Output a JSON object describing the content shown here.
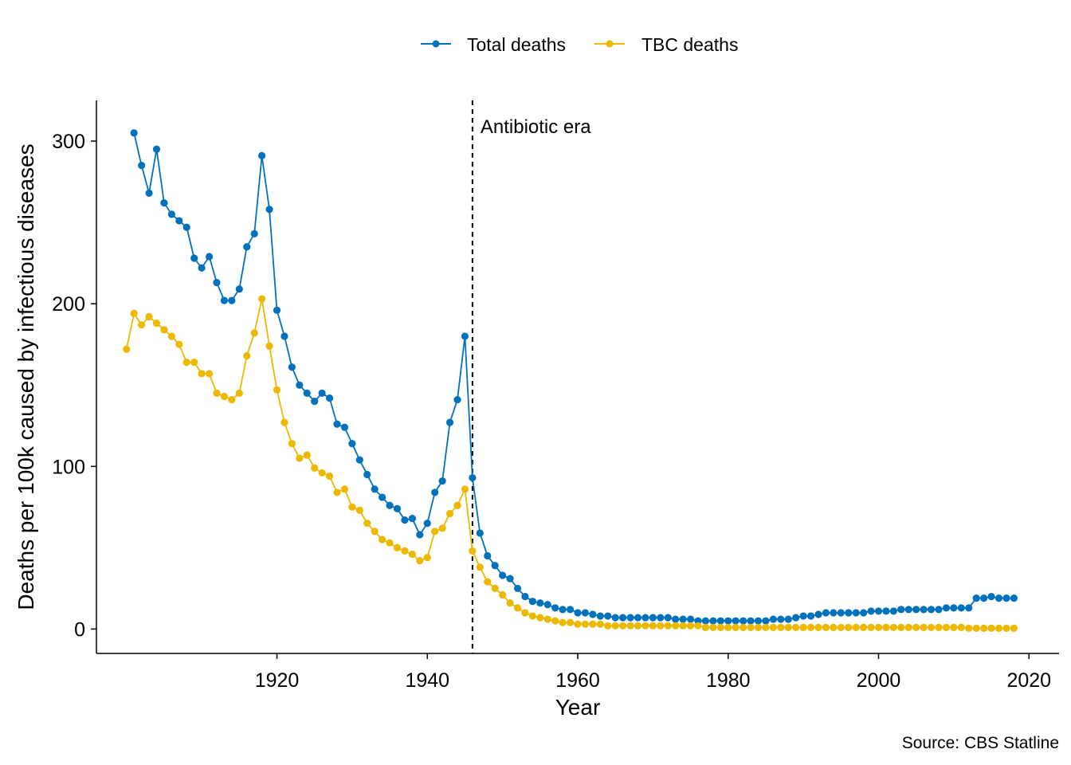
{
  "chart_data": {
    "type": "line",
    "xlabel": "Year",
    "ylabel": "Deaths per 100k caused by infectious diseases",
    "caption": "Source: CBS Statline",
    "xlim": [
      1896,
      2024
    ],
    "ylim": [
      -15,
      325
    ],
    "x_ticks": [
      1920,
      1940,
      1960,
      1980,
      2000,
      2020
    ],
    "y_ticks": [
      0,
      100,
      200,
      300
    ],
    "grid": false,
    "legend_position": "top",
    "markers": true,
    "annotation": {
      "x": 1946,
      "label": "Antibiotic era",
      "line_style": "dashed"
    },
    "series": [
      {
        "name": "Total deaths",
        "color": "#0072BD",
        "points": [
          [
            1901,
            305
          ],
          [
            1902,
            285
          ],
          [
            1903,
            268
          ],
          [
            1904,
            295
          ],
          [
            1905,
            262
          ],
          [
            1906,
            255
          ],
          [
            1907,
            251
          ],
          [
            1908,
            247
          ],
          [
            1909,
            228
          ],
          [
            1910,
            222
          ],
          [
            1911,
            229
          ],
          [
            1912,
            213
          ],
          [
            1913,
            202
          ],
          [
            1914,
            202
          ],
          [
            1915,
            209
          ],
          [
            1916,
            235
          ],
          [
            1917,
            243
          ],
          [
            1918,
            291
          ],
          [
            1919,
            258
          ],
          [
            1920,
            196
          ],
          [
            1921,
            180
          ],
          [
            1922,
            161
          ],
          [
            1923,
            150
          ],
          [
            1924,
            145
          ],
          [
            1925,
            140
          ],
          [
            1926,
            145
          ],
          [
            1927,
            142
          ],
          [
            1928,
            126
          ],
          [
            1929,
            124
          ],
          [
            1930,
            114
          ],
          [
            1931,
            104
          ],
          [
            1932,
            95
          ],
          [
            1933,
            86
          ],
          [
            1934,
            81
          ],
          [
            1935,
            76
          ],
          [
            1936,
            74
          ],
          [
            1937,
            67
          ],
          [
            1938,
            68
          ],
          [
            1939,
            58
          ],
          [
            1940,
            65
          ],
          [
            1941,
            84
          ],
          [
            1942,
            91
          ],
          [
            1943,
            127
          ],
          [
            1944,
            141
          ],
          [
            1945,
            180
          ],
          [
            1946,
            93
          ],
          [
            1947,
            59
          ],
          [
            1948,
            45
          ],
          [
            1949,
            39
          ],
          [
            1950,
            33
          ],
          [
            1951,
            31
          ],
          [
            1952,
            25
          ],
          [
            1953,
            20
          ],
          [
            1954,
            17
          ],
          [
            1955,
            16
          ],
          [
            1956,
            15
          ],
          [
            1957,
            13
          ],
          [
            1958,
            12
          ],
          [
            1959,
            12
          ],
          [
            1960,
            10
          ],
          [
            1961,
            10
          ],
          [
            1962,
            9
          ],
          [
            1963,
            8
          ],
          [
            1964,
            8
          ],
          [
            1965,
            7
          ],
          [
            1966,
            7
          ],
          [
            1967,
            7
          ],
          [
            1968,
            7
          ],
          [
            1969,
            7
          ],
          [
            1970,
            7
          ],
          [
            1971,
            7
          ],
          [
            1972,
            7
          ],
          [
            1973,
            6
          ],
          [
            1974,
            6
          ],
          [
            1975,
            6
          ],
          [
            1976,
            5
          ],
          [
            1977,
            5
          ],
          [
            1978,
            5
          ],
          [
            1979,
            5
          ],
          [
            1980,
            5
          ],
          [
            1981,
            5
          ],
          [
            1982,
            5
          ],
          [
            1983,
            5
          ],
          [
            1984,
            5
          ],
          [
            1985,
            5
          ],
          [
            1986,
            6
          ],
          [
            1987,
            6
          ],
          [
            1988,
            6
          ],
          [
            1989,
            7
          ],
          [
            1990,
            8
          ],
          [
            1991,
            8
          ],
          [
            1992,
            9
          ],
          [
            1993,
            10
          ],
          [
            1994,
            10
          ],
          [
            1995,
            10
          ],
          [
            1996,
            10
          ],
          [
            1997,
            10
          ],
          [
            1998,
            10
          ],
          [
            1999,
            11
          ],
          [
            2000,
            11
          ],
          [
            2001,
            11
          ],
          [
            2002,
            11
          ],
          [
            2003,
            12
          ],
          [
            2004,
            12
          ],
          [
            2005,
            12
          ],
          [
            2006,
            12
          ],
          [
            2007,
            12
          ],
          [
            2008,
            12
          ],
          [
            2009,
            13
          ],
          [
            2010,
            13
          ],
          [
            2011,
            13
          ],
          [
            2012,
            13
          ],
          [
            2013,
            19
          ],
          [
            2014,
            19
          ],
          [
            2015,
            20
          ],
          [
            2016,
            19
          ],
          [
            2017,
            19
          ],
          [
            2018,
            19
          ]
        ]
      },
      {
        "name": "TBC deaths",
        "color": "#EDB800",
        "points": [
          [
            1900,
            172
          ],
          [
            1901,
            194
          ],
          [
            1902,
            187
          ],
          [
            1903,
            192
          ],
          [
            1904,
            188
          ],
          [
            1905,
            184
          ],
          [
            1906,
            180
          ],
          [
            1907,
            175
          ],
          [
            1908,
            164
          ],
          [
            1909,
            164
          ],
          [
            1910,
            157
          ],
          [
            1911,
            157
          ],
          [
            1912,
            145
          ],
          [
            1913,
            143
          ],
          [
            1914,
            141
          ],
          [
            1915,
            145
          ],
          [
            1916,
            168
          ],
          [
            1917,
            182
          ],
          [
            1918,
            203
          ],
          [
            1919,
            174
          ],
          [
            1920,
            147
          ],
          [
            1921,
            127
          ],
          [
            1922,
            114
          ],
          [
            1923,
            105
          ],
          [
            1924,
            107
          ],
          [
            1925,
            99
          ],
          [
            1926,
            96
          ],
          [
            1927,
            94
          ],
          [
            1928,
            84
          ],
          [
            1929,
            86
          ],
          [
            1930,
            75
          ],
          [
            1931,
            73
          ],
          [
            1932,
            65
          ],
          [
            1933,
            60
          ],
          [
            1934,
            55
          ],
          [
            1935,
            53
          ],
          [
            1936,
            50
          ],
          [
            1937,
            48
          ],
          [
            1938,
            46
          ],
          [
            1939,
            42
          ],
          [
            1940,
            44
          ],
          [
            1941,
            60
          ],
          [
            1942,
            62
          ],
          [
            1943,
            71
          ],
          [
            1944,
            76
          ],
          [
            1945,
            86
          ],
          [
            1946,
            48
          ],
          [
            1947,
            38
          ],
          [
            1948,
            29
          ],
          [
            1949,
            25
          ],
          [
            1950,
            21
          ],
          [
            1951,
            16
          ],
          [
            1952,
            13
          ],
          [
            1953,
            10
          ],
          [
            1954,
            8
          ],
          [
            1955,
            7
          ],
          [
            1956,
            6
          ],
          [
            1957,
            5
          ],
          [
            1958,
            4
          ],
          [
            1959,
            4
          ],
          [
            1960,
            3
          ],
          [
            1961,
            3
          ],
          [
            1962,
            3
          ],
          [
            1963,
            3
          ],
          [
            1964,
            2
          ],
          [
            1965,
            2
          ],
          [
            1966,
            2
          ],
          [
            1967,
            2
          ],
          [
            1968,
            2
          ],
          [
            1969,
            2
          ],
          [
            1970,
            2
          ],
          [
            1971,
            2
          ],
          [
            1972,
            2
          ],
          [
            1973,
            2
          ],
          [
            1974,
            2
          ],
          [
            1975,
            2
          ],
          [
            1976,
            2
          ],
          [
            1977,
            1
          ],
          [
            1978,
            1
          ],
          [
            1979,
            1
          ],
          [
            1980,
            1
          ],
          [
            1981,
            1
          ],
          [
            1982,
            1
          ],
          [
            1983,
            1
          ],
          [
            1984,
            1
          ],
          [
            1985,
            1
          ],
          [
            1986,
            1
          ],
          [
            1987,
            1
          ],
          [
            1988,
            1
          ],
          [
            1989,
            1
          ],
          [
            1990,
            1
          ],
          [
            1991,
            1
          ],
          [
            1992,
            1
          ],
          [
            1993,
            1
          ],
          [
            1994,
            1
          ],
          [
            1995,
            1
          ],
          [
            1996,
            1
          ],
          [
            1997,
            1
          ],
          [
            1998,
            1
          ],
          [
            1999,
            1
          ],
          [
            2000,
            1
          ],
          [
            2001,
            1
          ],
          [
            2002,
            1
          ],
          [
            2003,
            1
          ],
          [
            2004,
            1
          ],
          [
            2005,
            1
          ],
          [
            2006,
            1
          ],
          [
            2007,
            1
          ],
          [
            2008,
            1
          ],
          [
            2009,
            1
          ],
          [
            2010,
            1
          ],
          [
            2011,
            1
          ],
          [
            2012,
            0.5
          ],
          [
            2013,
            0.5
          ],
          [
            2014,
            0.5
          ],
          [
            2015,
            0.5
          ],
          [
            2016,
            0.5
          ],
          [
            2017,
            0.5
          ],
          [
            2018,
            0.5
          ]
        ]
      }
    ]
  }
}
